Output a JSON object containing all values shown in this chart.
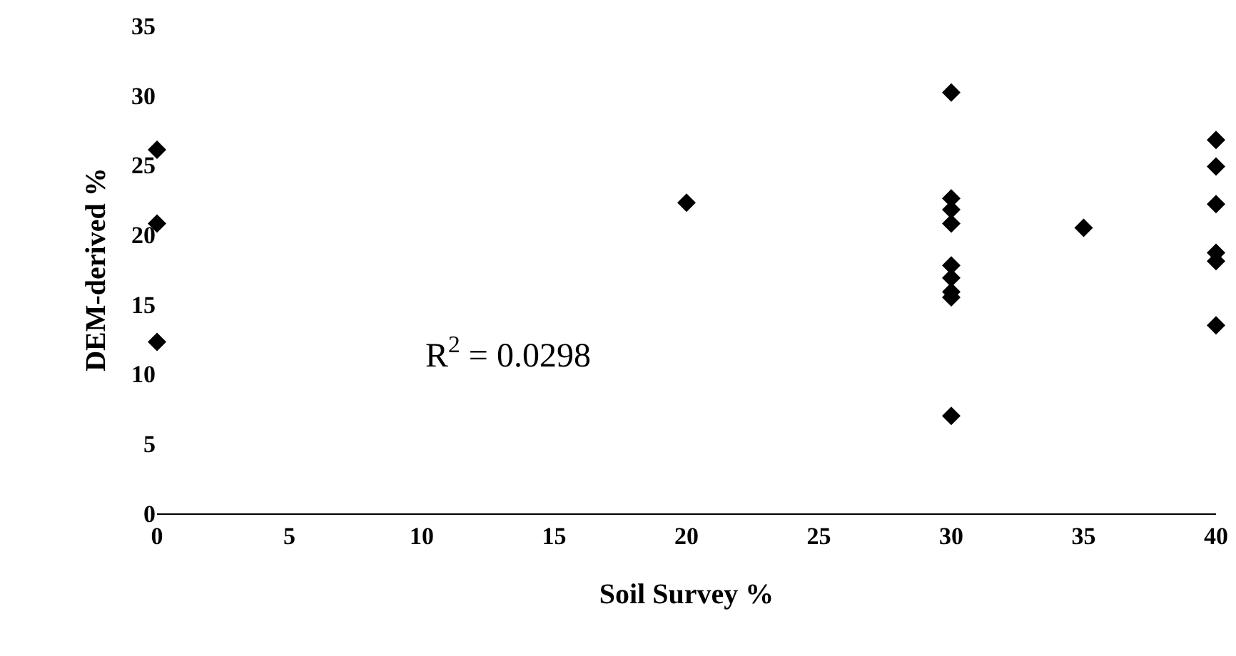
{
  "chart_data": {
    "type": "scatter",
    "xlabel": "Soil Survey %",
    "ylabel": "DEM-derived %",
    "marker": "diamond",
    "grid": false,
    "x": [
      0,
      0,
      0,
      20,
      30,
      30,
      30,
      30,
      30,
      30,
      30,
      30,
      30,
      35,
      40,
      40,
      40,
      40,
      40,
      40
    ],
    "series": [
      {
        "color": "#000000",
        "values": [
          26.1,
          20.8,
          12.3,
          22.3,
          30.2,
          22.6,
          21.8,
          20.8,
          17.8,
          16.9,
          15.9,
          15.5,
          7.0,
          20.5,
          26.8,
          24.9,
          22.2,
          18.7,
          18.1,
          13.5
        ]
      }
    ],
    "xlim": [
      0,
      40
    ],
    "xticks": [
      0,
      5,
      10,
      15,
      20,
      25,
      30,
      35,
      40
    ],
    "ylim": [
      0,
      35
    ],
    "yticks": [
      0,
      5,
      10,
      15,
      20,
      25,
      30,
      35
    ],
    "annotations": [
      "R$^{2}$ = 0.0298"
    ]
  }
}
